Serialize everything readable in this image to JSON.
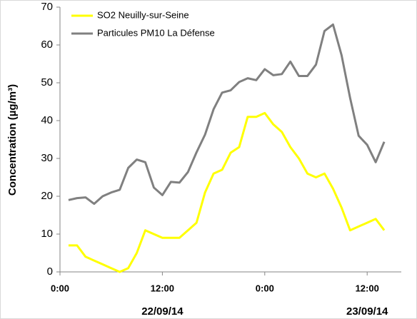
{
  "chart_data": {
    "type": "line",
    "y_label": "Concentration (µg/m³)",
    "x": [
      1,
      2,
      3,
      4,
      5,
      6,
      7,
      8,
      9,
      10,
      11,
      12,
      13,
      14,
      15,
      16,
      17,
      18,
      19,
      20,
      21,
      22,
      23,
      24,
      25,
      26,
      27,
      28,
      29,
      30,
      31,
      32,
      33,
      34,
      35,
      36,
      37,
      38
    ],
    "series": [
      {
        "name": "SO2 Neuilly-sur-Seine",
        "color": "#ffff00",
        "values": [
          7,
          7,
          4,
          3,
          2,
          1,
          0,
          1,
          5,
          11,
          10,
          9,
          9,
          9,
          11,
          13,
          21,
          26,
          27,
          31.5,
          33,
          41,
          41,
          42,
          39,
          37,
          33,
          30,
          26,
          25,
          26,
          22,
          17,
          11,
          12,
          13,
          14,
          11
        ]
      },
      {
        "name": "Particules PM10 La Défense",
        "color": "#808080",
        "values": [
          19,
          19.5,
          19.7,
          18,
          20,
          21,
          21.7,
          27.5,
          29.7,
          29,
          22.3,
          20.3,
          23.8,
          23.6,
          26.4,
          31.6,
          36.3,
          43,
          47.4,
          48,
          50.2,
          51.2,
          50.7,
          53.6,
          52,
          52.3,
          55.6,
          51.8,
          51.8,
          54.8,
          63.7,
          65.4,
          57.3,
          46,
          36,
          33.6,
          29,
          34.4
        ]
      }
    ],
    "xlim": [
      0,
      40
    ],
    "xticks": [
      {
        "value": 0,
        "label": "0:00"
      },
      {
        "value": 12,
        "label": "12:00"
      },
      {
        "value": 24,
        "label": "0:00"
      },
      {
        "value": 36,
        "label": "12:00"
      }
    ],
    "date_labels": [
      {
        "value": 12,
        "label": "22/09/14"
      },
      {
        "value": 36,
        "label": "23/09/14"
      }
    ],
    "ylim": [
      0,
      70
    ],
    "yticks": [
      0,
      10,
      20,
      30,
      40,
      50,
      60,
      70
    ],
    "grid": false,
    "legend": "upper left"
  }
}
